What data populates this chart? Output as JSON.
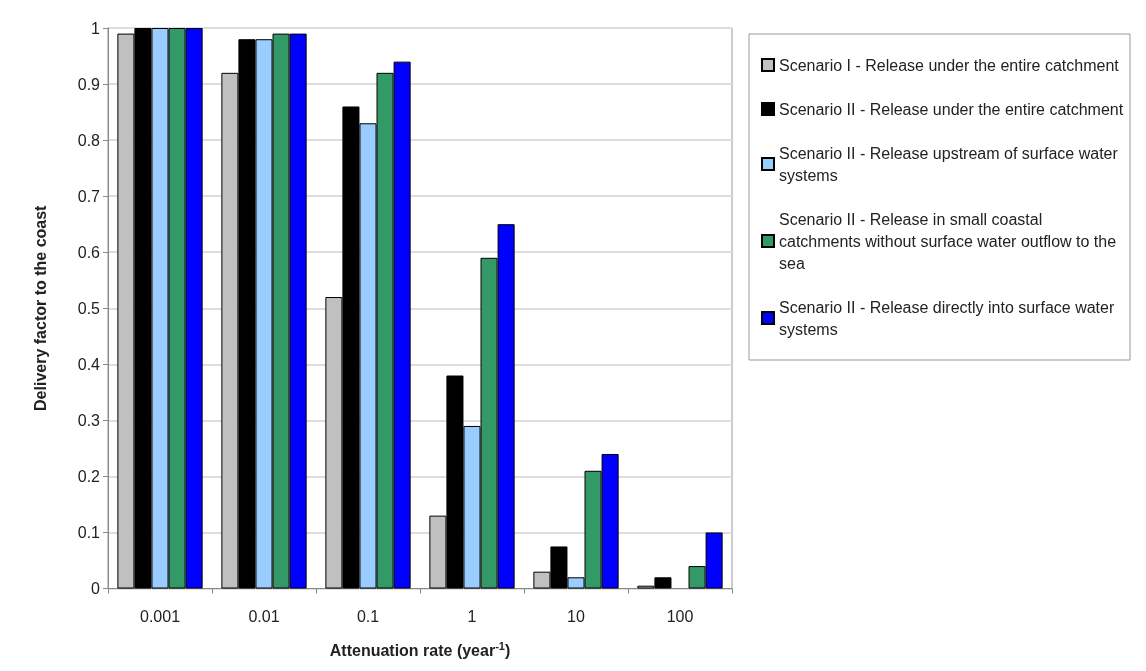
{
  "chart_data": {
    "type": "bar",
    "xlabel": "Attenuation rate (year$^{-1}$)",
    "ylabel": "Delivery factor to the coast",
    "categories": [
      "0.001",
      "0.01",
      "0.1",
      "1",
      "10",
      "100"
    ],
    "ylim": [
      0,
      1
    ],
    "yticks": [
      0,
      0.1,
      0.2,
      0.3,
      0.4,
      0.5,
      0.6,
      0.7,
      0.8,
      0.9,
      1
    ],
    "grid": "y",
    "legend": "right",
    "series": [
      {
        "name": "Scenario I - Release under the entire catchment",
        "color": "#c0c0c0",
        "values": [
          0.99,
          0.92,
          0.52,
          0.13,
          0.03,
          0.005
        ]
      },
      {
        "name": "Scenario II - Release under the entire catchment",
        "color": "#000000",
        "values": [
          1,
          0.98,
          0.86,
          0.38,
          0.075,
          0.02
        ]
      },
      {
        "name": "Scenario II - Release upstream of surface water systems",
        "color": "#99ccff",
        "values": [
          1,
          0.98,
          0.83,
          0.29,
          0.02,
          null
        ]
      },
      {
        "name": "Scenario II - Release in small coastal catchments without surface water outflow to the sea",
        "color": "#339966",
        "values": [
          1,
          0.99,
          0.92,
          0.59,
          0.21,
          0.04
        ]
      },
      {
        "name": "Scenario II - Release directly into surface water systems",
        "color": "#0000ff",
        "values": [
          1,
          0.99,
          0.94,
          0.65,
          0.24,
          0.1
        ]
      }
    ]
  }
}
